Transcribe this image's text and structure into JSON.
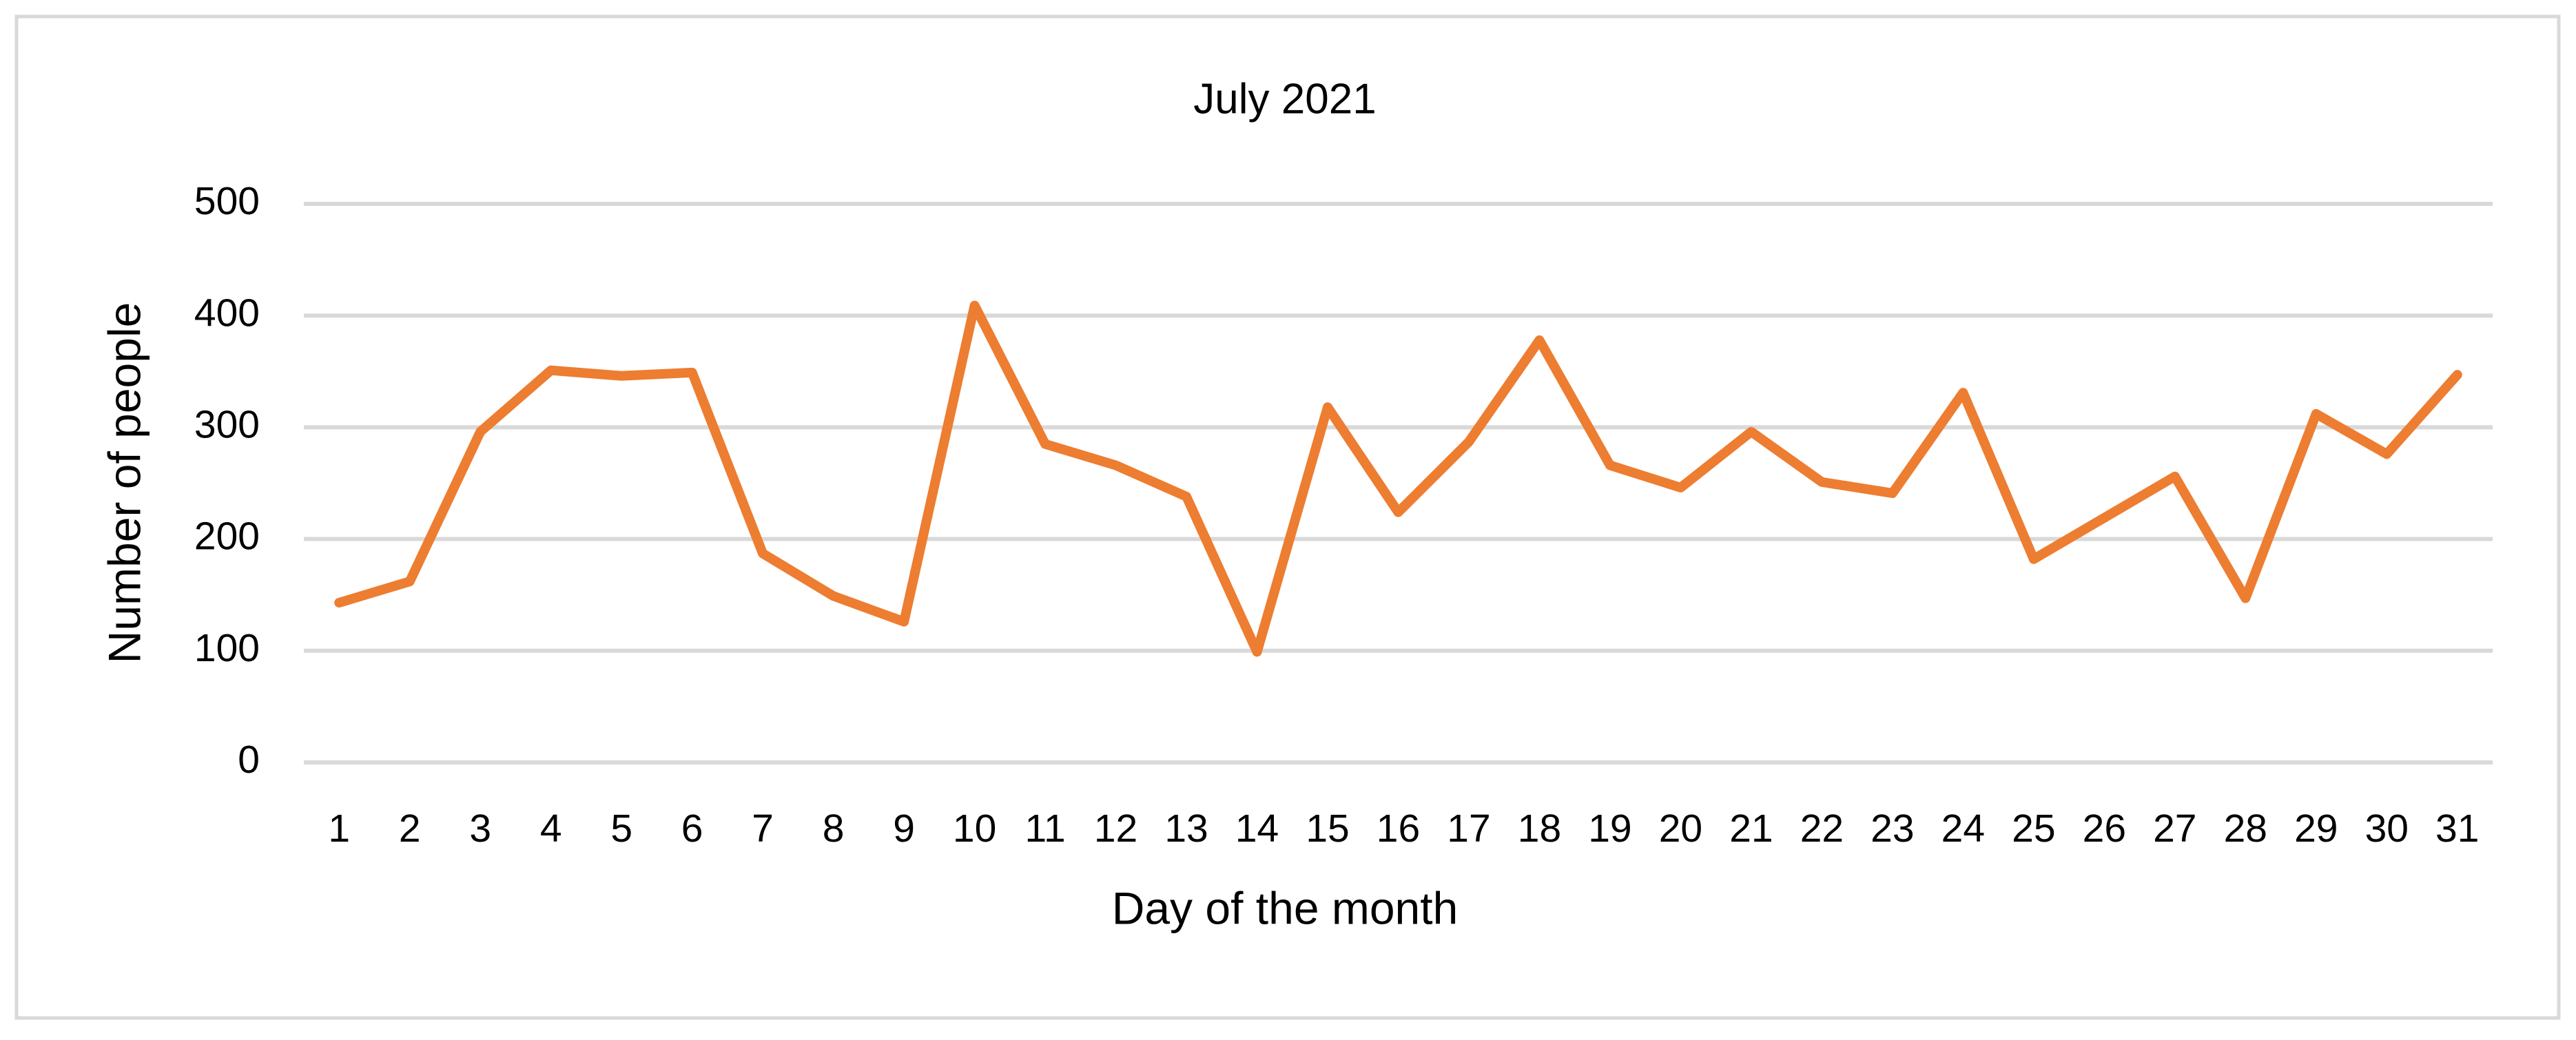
{
  "chart_data": {
    "type": "line",
    "title": "July 2021",
    "x_label": "Day of the month",
    "y_label": "Number of people",
    "x": [
      1,
      2,
      3,
      4,
      5,
      6,
      7,
      8,
      9,
      10,
      11,
      12,
      13,
      14,
      15,
      16,
      17,
      18,
      19,
      20,
      21,
      22,
      23,
      24,
      25,
      26,
      27,
      28,
      29,
      30,
      31
    ],
    "xlim": [
      0.5,
      31.5
    ],
    "series": [
      {
        "name": "Number of people",
        "color": "#ed7d31",
        "values": [
          143,
          162,
          296,
          351,
          346,
          349,
          187,
          149,
          126,
          409,
          285,
          266,
          238,
          99,
          318,
          224,
          287,
          378,
          266,
          246,
          296,
          251,
          241,
          331,
          182,
          219,
          256,
          147,
          312,
          276,
          347
        ]
      }
    ],
    "ylim": [
      0,
      500
    ],
    "yticks": [
      0,
      100,
      200,
      300,
      400,
      500
    ],
    "grid": true
  }
}
